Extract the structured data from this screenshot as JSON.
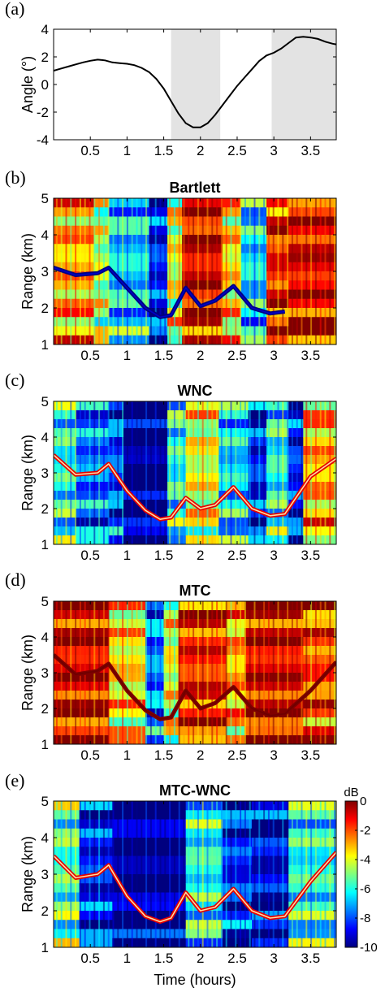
{
  "xlabel": "Time (hours)",
  "x_ticks": [
    0.5,
    1,
    1.5,
    2,
    2.5,
    3,
    3.5
  ],
  "x_tick_labels": [
    "0.5",
    "1",
    "1.5",
    "2",
    "2.5",
    "3",
    "3.5"
  ],
  "colormap": [
    "#00007f",
    "#0000ff",
    "#007fff",
    "#00ffff",
    "#7fff7f",
    "#ffff00",
    "#ff7f00",
    "#ff0000",
    "#7f0000"
  ],
  "chart_data": [
    {
      "letter": "(a)",
      "type": "line",
      "title": "",
      "ylabel": "Angle (°)",
      "xlabel": "",
      "xlim": [
        0,
        3.85
      ],
      "ylim": [
        -4,
        4
      ],
      "y_ticks": [
        -4,
        -2,
        0,
        2,
        4
      ],
      "y_tick_labels": [
        "-4",
        "-2",
        "0",
        "2",
        "4"
      ],
      "shaded_regions": [
        [
          1.6,
          2.27
        ],
        [
          2.97,
          3.85
        ]
      ],
      "line_color": "#000000",
      "shade_color": "#e3e3e3",
      "x": [
        0,
        0.1,
        0.2,
        0.3,
        0.4,
        0.5,
        0.6,
        0.7,
        0.8,
        0.9,
        1.0,
        1.1,
        1.2,
        1.3,
        1.4,
        1.5,
        1.6,
        1.7,
        1.8,
        1.9,
        2.0,
        2.1,
        2.2,
        2.3,
        2.4,
        2.5,
        2.6,
        2.7,
        2.8,
        2.9,
        3.0,
        3.1,
        3.2,
        3.3,
        3.4,
        3.5,
        3.6,
        3.7,
        3.8,
        3.85
      ],
      "y": [
        1.0,
        1.15,
        1.3,
        1.45,
        1.6,
        1.72,
        1.8,
        1.75,
        1.6,
        1.55,
        1.5,
        1.4,
        1.2,
        0.9,
        0.4,
        -0.3,
        -1.2,
        -2.1,
        -2.8,
        -3.1,
        -3.1,
        -2.8,
        -2.2,
        -1.5,
        -0.8,
        -0.1,
        0.5,
        1.1,
        1.7,
        2.1,
        2.3,
        2.6,
        3.0,
        3.4,
        3.45,
        3.4,
        3.3,
        3.1,
        2.95,
        2.9
      ]
    },
    {
      "letter": "(b)",
      "type": "heatmap",
      "title": "Bartlett",
      "ylabel": "Range (km)",
      "xlabel": "",
      "xlim": [
        0,
        3.85
      ],
      "ylim": [
        1,
        5
      ],
      "y_ticks": [
        1,
        2,
        3,
        4,
        5
      ],
      "y_tick_labels": [
        "1",
        "2",
        "3",
        "4",
        "5"
      ],
      "value_range": [
        -10,
        0
      ],
      "units": "dB",
      "time_bands": [
        [
          0,
          0.55,
          -3
        ],
        [
          0.55,
          0.75,
          -4.5
        ],
        [
          0.75,
          1.3,
          -6.5
        ],
        [
          1.3,
          1.55,
          -8.5
        ],
        [
          1.55,
          1.75,
          -4
        ],
        [
          1.75,
          2.3,
          -1
        ],
        [
          2.3,
          2.55,
          -3.5
        ],
        [
          2.55,
          2.9,
          -6.5
        ],
        [
          2.9,
          3.2,
          -1.5
        ],
        [
          3.2,
          3.85,
          -1
        ]
      ],
      "track_t": [
        0,
        0.3,
        0.6,
        0.75,
        1.0,
        1.25,
        1.45,
        1.6,
        1.8,
        2.0,
        2.2,
        2.45,
        2.7,
        2.95,
        3.15
      ],
      "track_r": [
        3.1,
        2.9,
        2.95,
        3.1,
        2.55,
        2.0,
        1.75,
        1.8,
        2.55,
        2.05,
        2.2,
        2.6,
        2.0,
        1.85,
        1.9
      ],
      "track_value": -10,
      "track_color": "#0000c8"
    },
    {
      "letter": "(c)",
      "type": "heatmap",
      "title": "WNC",
      "ylabel": "Range (km)",
      "xlabel": "",
      "xlim": [
        0,
        3.85
      ],
      "ylim": [
        1,
        5
      ],
      "y_ticks": [
        1,
        2,
        3,
        4,
        5
      ],
      "y_tick_labels": [
        "1",
        "2",
        "3",
        "4",
        "5"
      ],
      "value_range": [
        -10,
        0
      ],
      "units": "dB",
      "time_bands": [
        [
          0,
          0.3,
          -6
        ],
        [
          0.3,
          0.75,
          -7.5
        ],
        [
          0.75,
          0.95,
          -8
        ],
        [
          0.95,
          1.55,
          -10
        ],
        [
          1.55,
          1.8,
          -6
        ],
        [
          1.8,
          2.25,
          -4
        ],
        [
          2.25,
          2.65,
          -6.5
        ],
        [
          2.65,
          2.9,
          -8.5
        ],
        [
          2.9,
          3.2,
          -6
        ],
        [
          3.2,
          3.4,
          -8.5
        ],
        [
          3.4,
          3.85,
          -3
        ]
      ],
      "track_t": [
        0,
        0.3,
        0.6,
        0.75,
        1.0,
        1.25,
        1.45,
        1.6,
        1.8,
        2.0,
        2.2,
        2.45,
        2.7,
        2.95,
        3.15,
        3.5,
        3.85
      ],
      "track_r": [
        3.5,
        2.95,
        3.0,
        3.25,
        2.5,
        1.95,
        1.7,
        1.75,
        2.3,
        2.0,
        2.1,
        2.6,
        2.0,
        1.8,
        1.85,
        2.9,
        3.4
      ],
      "track_value": -1,
      "track_color": "#ffdca0"
    },
    {
      "letter": "(d)",
      "type": "heatmap",
      "title": "MTC",
      "ylabel": "Range (km)",
      "xlabel": "",
      "xlim": [
        0,
        3.85
      ],
      "ylim": [
        1,
        5
      ],
      "y_ticks": [
        1,
        2,
        3,
        4,
        5
      ],
      "y_tick_labels": [
        "1",
        "2",
        "3",
        "4",
        "5"
      ],
      "value_range": [
        -10,
        0
      ],
      "units": "dB",
      "time_bands": [
        [
          0,
          0.75,
          -1
        ],
        [
          0.75,
          1.25,
          -3.5
        ],
        [
          1.25,
          1.5,
          -7.5
        ],
        [
          1.5,
          1.7,
          -4
        ],
        [
          1.7,
          2.35,
          -1.5
        ],
        [
          2.35,
          2.6,
          -3
        ],
        [
          2.6,
          3.4,
          -1
        ],
        [
          3.4,
          3.85,
          -2
        ]
      ],
      "track_t": [
        0,
        0.3,
        0.6,
        0.75,
        1.0,
        1.25,
        1.45,
        1.6,
        1.8,
        2.0,
        2.2,
        2.45,
        2.7,
        2.95,
        3.15,
        3.5,
        3.85
      ],
      "track_r": [
        3.5,
        2.95,
        3.05,
        3.25,
        2.5,
        1.95,
        1.7,
        1.75,
        2.5,
        2.0,
        2.15,
        2.6,
        2.0,
        1.8,
        1.85,
        2.5,
        3.3
      ],
      "track_value": 0,
      "track_color": "#6e0000"
    },
    {
      "letter": "(e)",
      "type": "heatmap",
      "title": "MTC-WNC",
      "ylabel": "Range (km)",
      "xlabel": "Time (hours)",
      "xlim": [
        0,
        3.85
      ],
      "ylim": [
        1,
        5
      ],
      "y_ticks": [
        1,
        2,
        3,
        4,
        5
      ],
      "y_tick_labels": [
        "1",
        "2",
        "3",
        "4",
        "5"
      ],
      "value_range": [
        -10,
        0
      ],
      "units": "dB",
      "colorbar": {
        "label": "dB",
        "ticks": [
          0,
          -2,
          -4,
          -6,
          -8,
          -10
        ],
        "tick_labels": [
          "0",
          "-2",
          "-4",
          "-6",
          "-8",
          "-10"
        ]
      },
      "time_bands": [
        [
          0,
          0.35,
          -5.5
        ],
        [
          0.35,
          0.8,
          -8.5
        ],
        [
          0.8,
          1.8,
          -10
        ],
        [
          1.8,
          2.3,
          -6
        ],
        [
          2.3,
          2.7,
          -8.5
        ],
        [
          2.7,
          3.2,
          -9
        ],
        [
          3.2,
          3.85,
          -6
        ]
      ],
      "track_t": [
        0,
        0.3,
        0.6,
        0.75,
        1.0,
        1.25,
        1.45,
        1.6,
        1.8,
        2.0,
        2.2,
        2.45,
        2.7,
        2.95,
        3.15,
        3.5,
        3.85
      ],
      "track_r": [
        3.5,
        2.9,
        3.0,
        3.25,
        2.4,
        1.85,
        1.7,
        1.8,
        2.5,
        2.0,
        2.1,
        2.6,
        2.0,
        1.8,
        1.85,
        2.8,
        3.6
      ],
      "track_value": -1,
      "track_color": "#ffdca0"
    }
  ]
}
